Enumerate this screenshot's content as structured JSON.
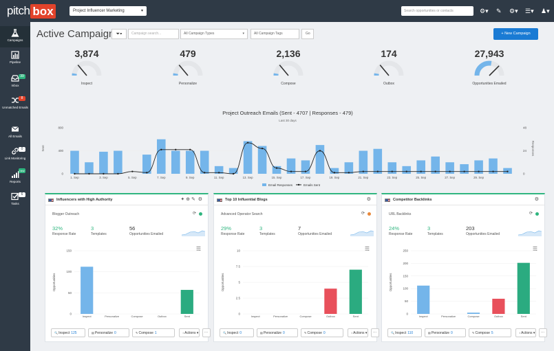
{
  "app": {
    "logo_part1": "pitch",
    "logo_part2": "box"
  },
  "topbar": {
    "project": "Project Influencer Marketing",
    "search_placeholder": "Search opportunities or contacts"
  },
  "sidebar": {
    "items": [
      {
        "label": "Campaigns",
        "icon": "flask-icon"
      },
      {
        "label": "Pipeline",
        "icon": "chart-icon"
      },
      {
        "label": "Inbox",
        "icon": "inbox-icon",
        "badge": "39"
      },
      {
        "label": "Unmatched Emails",
        "icon": "shuffle-icon",
        "badge": "8"
      },
      {
        "label": "All Emails",
        "icon": "envelope-icon"
      },
      {
        "label": "Link Monitoring",
        "icon": "link-icon",
        "badge": "0"
      },
      {
        "label": "Reports",
        "icon": "bars-icon",
        "badge": "new"
      },
      {
        "label": "Tasks",
        "icon": "check-icon",
        "badge": "6"
      }
    ]
  },
  "header": {
    "title": "Active Campaigns",
    "search_placeholder": "Campaign search...",
    "types_select": "All Campaign Types",
    "tags_input": "All Campaign Tags",
    "go_label": "Go",
    "new_campaign": "+ New Campaign"
  },
  "gauges": [
    {
      "value": "3,874",
      "label": "Inspect",
      "fill": 0.05
    },
    {
      "value": "479",
      "label": "Personalize",
      "fill": 0.05
    },
    {
      "value": "2,136",
      "label": "Compose",
      "fill": 0.05
    },
    {
      "value": "174",
      "label": "Outbox",
      "fill": 0.05
    },
    {
      "value": "27,943",
      "label": "Opportunities Emailed",
      "fill": 0.55
    }
  ],
  "chart_data": {
    "type": "bar",
    "title": "Project Outreach Emails (Sent - 4707 | Responses - 479)",
    "subtitle": "Last 30 days",
    "ylabel": "Sent",
    "y2label": "Responses",
    "ylim": [
      0,
      800
    ],
    "y2lim": [
      0,
      48
    ],
    "yticks": [
      "0",
      "400",
      "800"
    ],
    "y2ticks": [
      "0",
      "24",
      "48"
    ],
    "xticklabels": [
      "1. Sep",
      "3. Sep",
      "5. Sep",
      "7. Sep",
      "9. Sep",
      "11. Sep",
      "13. Sep",
      "15. Sep",
      "17. Sep",
      "19. Sep",
      "21. Sep",
      "23. Sep",
      "25. Sep",
      "27. Sep",
      "29. Sep"
    ],
    "legend": [
      "Email Responses",
      "Emails Sent"
    ],
    "series": [
      {
        "name": "Email Responses",
        "type": "bar",
        "axis": "right",
        "values": [
          24,
          12,
          23,
          24,
          0,
          20,
          36,
          24,
          24,
          24,
          8,
          6,
          34,
          29,
          8,
          16,
          14,
          30,
          6,
          12,
          24,
          26,
          12,
          8,
          14,
          18,
          12,
          10,
          14,
          16,
          6
        ]
      },
      {
        "name": "Emails Sent",
        "type": "line",
        "axis": "left",
        "values": [
          0,
          0,
          0,
          0,
          40,
          20,
          420,
          420,
          420,
          20,
          20,
          0,
          540,
          440,
          100,
          40,
          40,
          400,
          20,
          20,
          40,
          40,
          40,
          40,
          40,
          40,
          40,
          40,
          40,
          40,
          40
        ]
      }
    ]
  },
  "panels": [
    {
      "title": "Influencers with High Authority",
      "subtitle": "Blogger Outreach",
      "indicator": "#2fb57f",
      "stats": [
        {
          "v": "32%",
          "l": "Response Rate",
          "c": "#2fb57f"
        },
        {
          "v": "3",
          "l": "Templates",
          "c": "#2fb57f"
        },
        {
          "v": "56",
          "l": "Opportunities Emailed",
          "c": "#333"
        }
      ],
      "ylabel": "Opportunities",
      "yticks": [
        "0",
        "50",
        "100",
        "150"
      ],
      "ylim": [
        0,
        150
      ],
      "categories": [
        "Inspect",
        "Personalize",
        "Compose",
        "Outbox",
        "Sent"
      ],
      "values": [
        112,
        0,
        0,
        0,
        57
      ],
      "buttons": [
        {
          "t": "Inspect",
          "c": "125"
        },
        {
          "t": "Personalize",
          "c": "0"
        },
        {
          "t": "Compose",
          "c": "1"
        },
        {
          "t": "Actions",
          "c": ""
        }
      ]
    },
    {
      "title": "Top 10 Influential Blogs",
      "subtitle": "Advanced Operator Search",
      "indicator": "#e8883a",
      "stats": [
        {
          "v": "29%",
          "l": "Response Rate",
          "c": "#2fb57f"
        },
        {
          "v": "3",
          "l": "Templates",
          "c": "#2fb57f"
        },
        {
          "v": "7",
          "l": "Opportunities Emailed",
          "c": "#333"
        }
      ],
      "ylabel": "Opportunities",
      "yticks": [
        "0",
        "2.5",
        "5",
        "7.5",
        "10"
      ],
      "ylim": [
        0,
        10
      ],
      "categories": [
        "Inspect",
        "Personalize",
        "Compose",
        "Outbox",
        "Sent"
      ],
      "values": [
        0,
        0,
        0,
        4,
        7
      ],
      "buttons": [
        {
          "t": "Inspect",
          "c": "0"
        },
        {
          "t": "Personalize",
          "c": "0"
        },
        {
          "t": "Compose",
          "c": "0"
        },
        {
          "t": "Actions",
          "c": ""
        }
      ]
    },
    {
      "title": "Competitor Backlinks",
      "subtitle": "URL Backlinks",
      "indicator": "#2fb57f",
      "stats": [
        {
          "v": "24%",
          "l": "Response Rate",
          "c": "#2fb57f"
        },
        {
          "v": "3",
          "l": "Templates",
          "c": "#2fb57f"
        },
        {
          "v": "203",
          "l": "Opportunities Emailed",
          "c": "#333"
        }
      ],
      "ylabel": "Opportunities",
      "yticks": [
        "0",
        "50",
        "100",
        "150",
        "200",
        "250"
      ],
      "ylim": [
        0,
        250
      ],
      "categories": [
        "Inspect",
        "Personalize",
        "Compose",
        "Outbox",
        "Sent"
      ],
      "values": [
        112,
        0,
        5,
        60,
        202
      ],
      "buttons": [
        {
          "t": "Inspect",
          "c": "110"
        },
        {
          "t": "Personalize",
          "c": "0"
        },
        {
          "t": "Compose",
          "c": "5"
        },
        {
          "t": "Actions",
          "c": ""
        }
      ]
    }
  ],
  "colors": {
    "bar_blue": "#74b5ea",
    "line_dark": "#222",
    "panel_bars": [
      "#74b5ea",
      "#74b5ea",
      "#74b5ea",
      "#e8505b",
      "#2bab80"
    ],
    "accent": "#1a7bd4",
    "brand": "#e2432b"
  }
}
